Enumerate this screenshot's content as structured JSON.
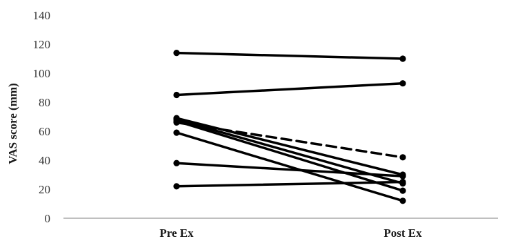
{
  "chart_data": {
    "type": "line",
    "title": "",
    "xlabel": "",
    "ylabel": "VAS score (mm)",
    "categories": [
      "Pre Ex",
      "Post Ex"
    ],
    "ylim": [
      0,
      140
    ],
    "yticks": [
      "0",
      "20",
      "40",
      "60",
      "80",
      "100",
      "120",
      "140"
    ],
    "grid": false,
    "legend": "none",
    "series": [
      {
        "values": [
          114,
          110
        ],
        "style": "solid"
      },
      {
        "values": [
          85,
          93
        ],
        "style": "solid"
      },
      {
        "values": [
          69,
          30
        ],
        "style": "solid"
      },
      {
        "values": [
          68,
          24
        ],
        "style": "solid"
      },
      {
        "values": [
          67,
          19
        ],
        "style": "solid"
      },
      {
        "values": [
          66,
          42
        ],
        "style": "dashed"
      },
      {
        "values": [
          59,
          12
        ],
        "style": "solid"
      },
      {
        "values": [
          38,
          29
        ],
        "style": "solid"
      },
      {
        "values": [
          22,
          25
        ],
        "style": "solid"
      }
    ],
    "colors": {
      "line": "#000000",
      "axis": "#7f7f7f"
    }
  }
}
